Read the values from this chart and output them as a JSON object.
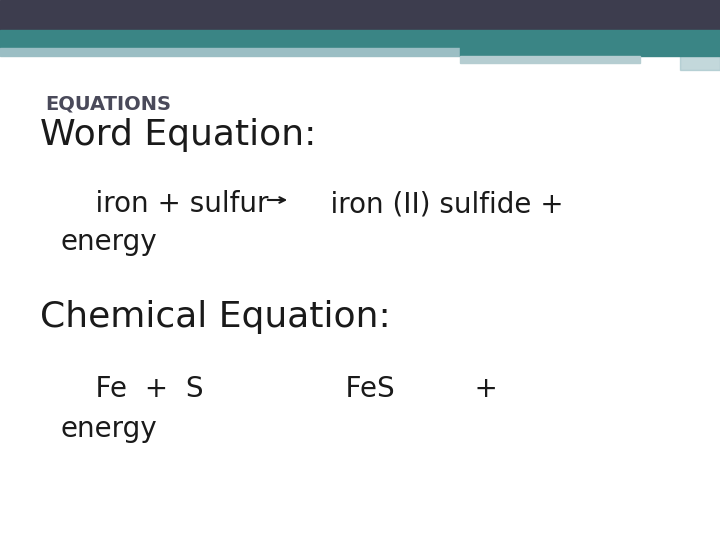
{
  "bg_color": "#ffffff",
  "header_dark_color": "#3d3d4e",
  "header_teal_color": "#3a8585",
  "header_light_color1": "#9bbec4",
  "header_light_color2": "#b5cdd1",
  "equations_label": "EQUATIONS",
  "equations_label_color": "#4a4a5a",
  "word_eq_title": "Word Equation:",
  "chem_eq_title": "Chemical Equation:",
  "text_color": "#1a1a1a",
  "label_fontsize": 14,
  "title_fontsize": 26,
  "body_fontsize": 20
}
